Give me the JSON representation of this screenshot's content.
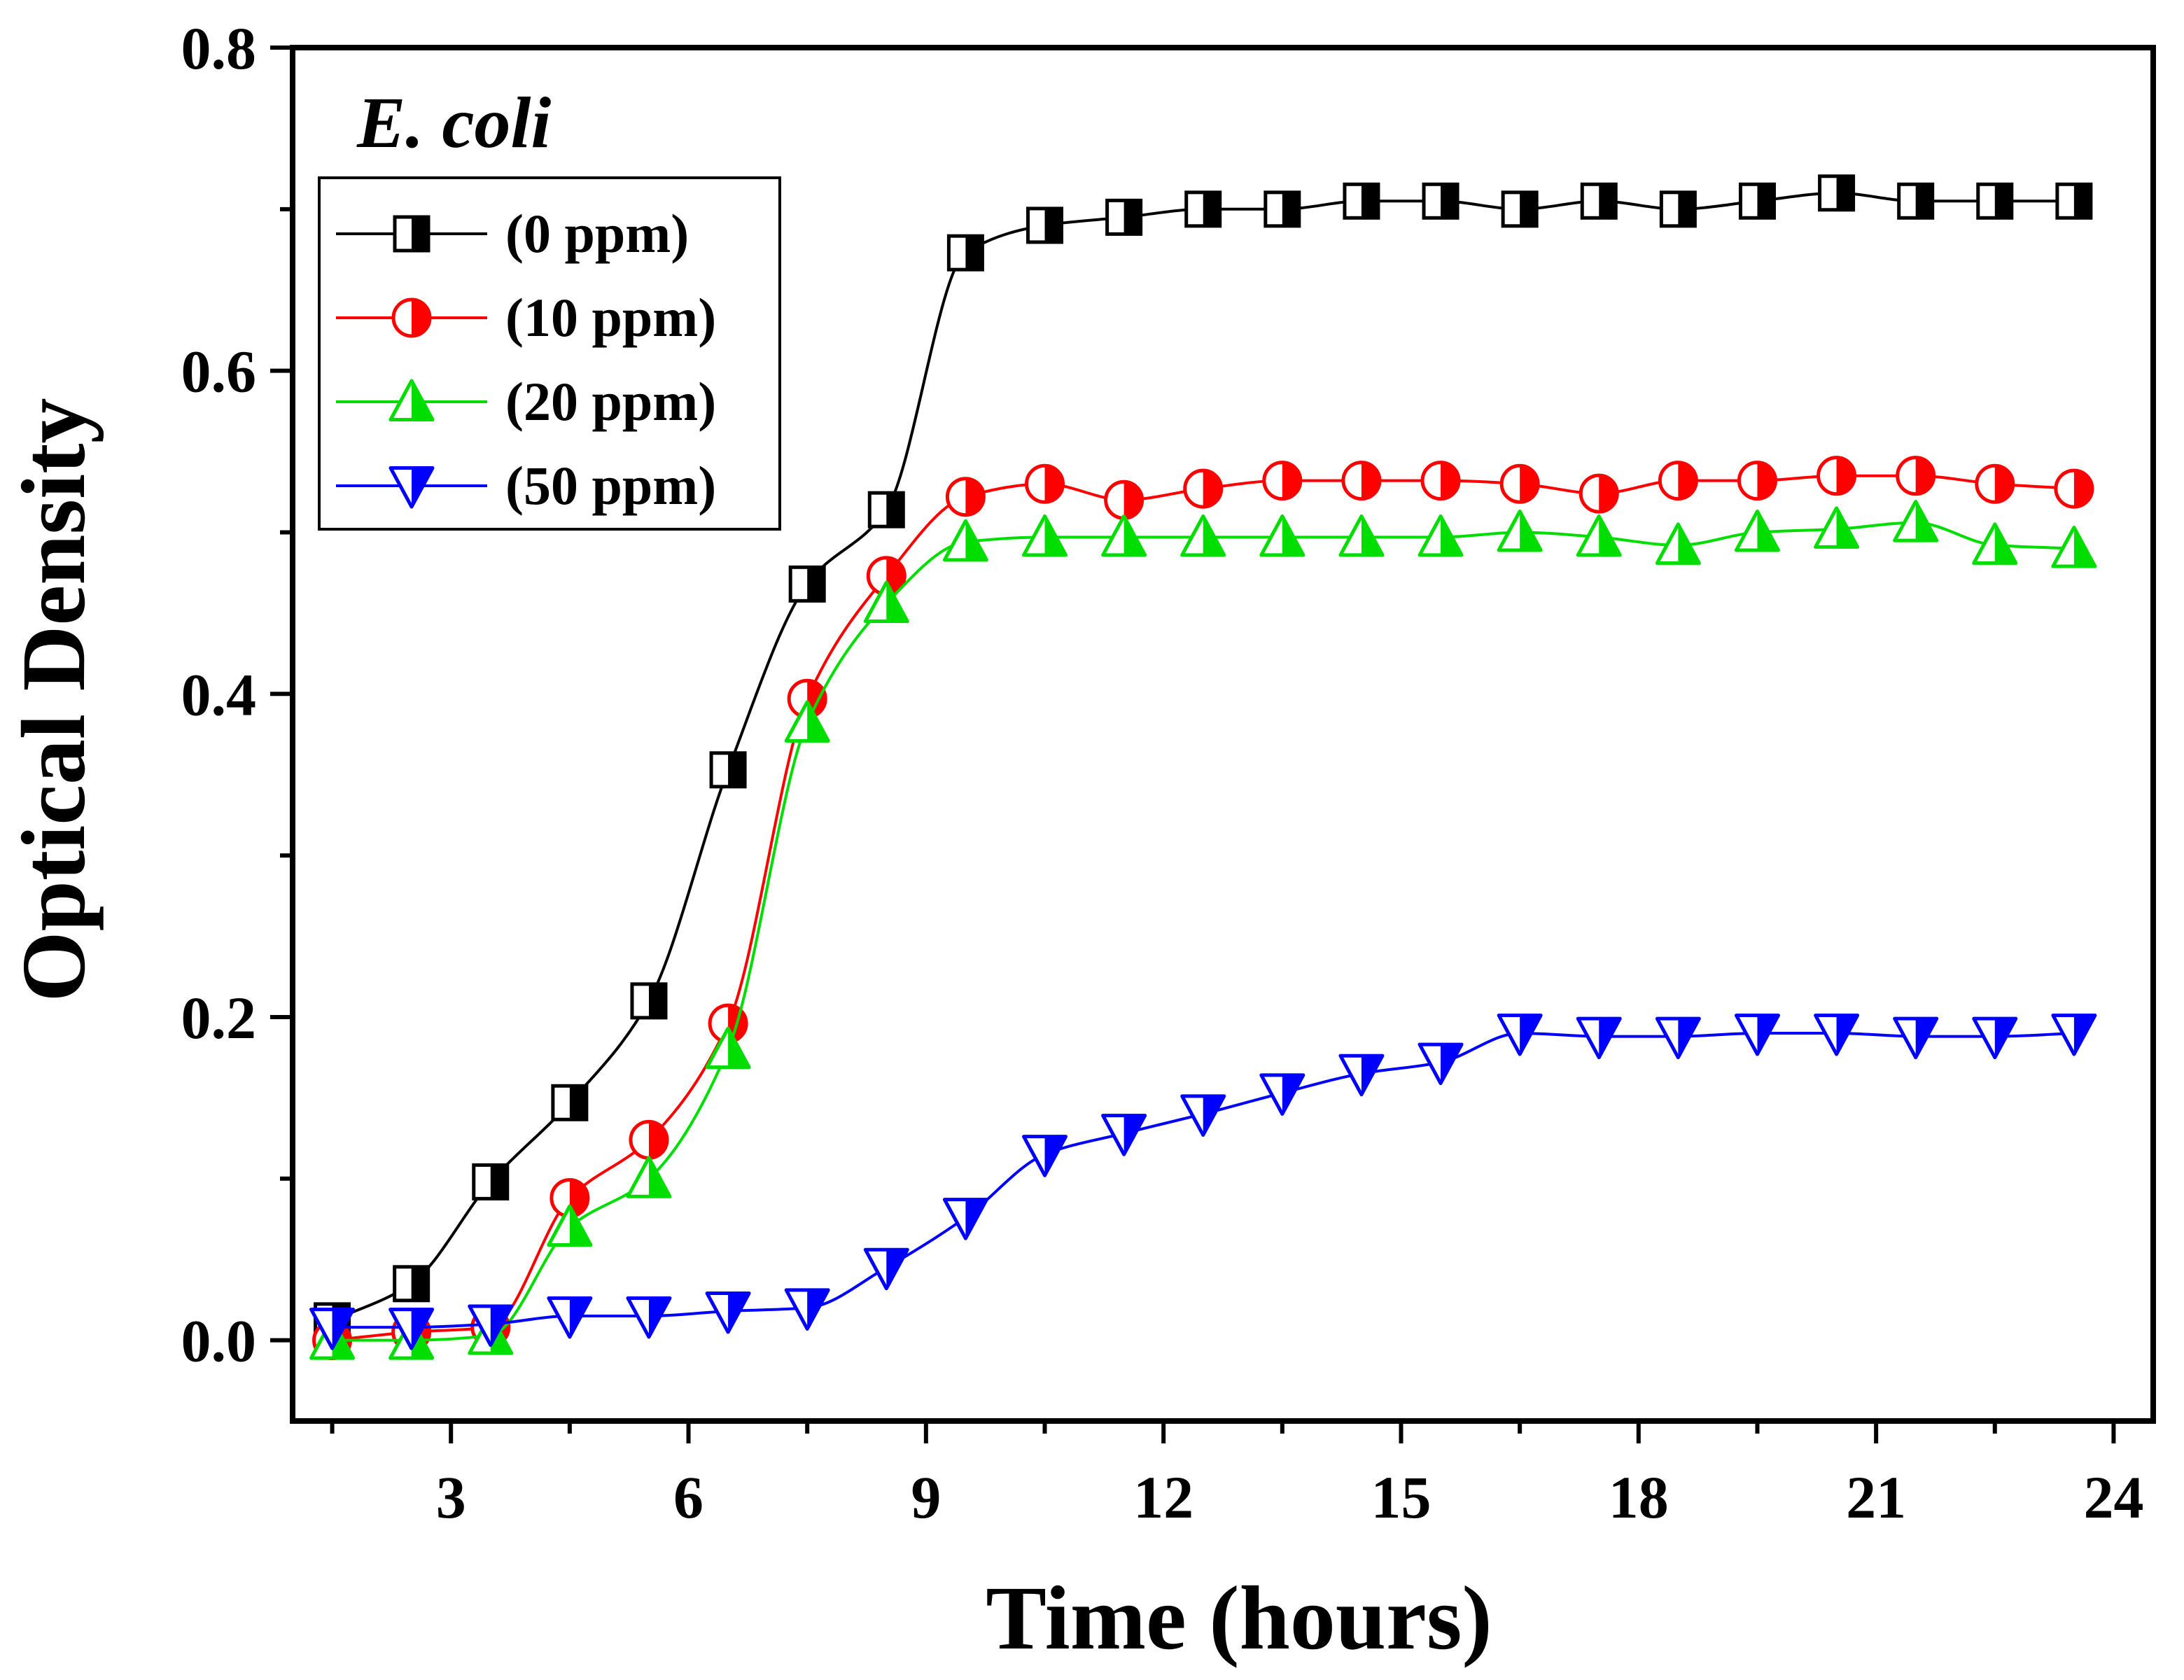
{
  "chart_data": {
    "type": "line",
    "title": "",
    "annotation": "E. coli",
    "xlabel": "Time (hours)",
    "ylabel": "Optical Density",
    "xlim": [
      1,
      24.5
    ],
    "ylim": [
      -0.05,
      0.8
    ],
    "xticks": [
      3,
      6,
      9,
      12,
      15,
      18,
      21,
      24
    ],
    "xtick_labels": [
      "3",
      "6",
      "9",
      "12",
      "15",
      "18",
      "21",
      "24"
    ],
    "yticks": [
      0.0,
      0.2,
      0.4,
      0.6,
      0.8
    ],
    "ytick_labels": [
      "0.0",
      "0.2",
      "0.4",
      "0.6",
      "0.8"
    ],
    "grid": false,
    "legend_position": "top-left",
    "series": [
      {
        "name": "(0 ppm)",
        "color": "#000000",
        "marker": "square-half",
        "x": [
          1.5,
          2.5,
          3.5,
          4.5,
          5.5,
          6.5,
          7.5,
          8.5,
          9.5,
          10.5,
          11.5,
          12.5,
          13.5,
          14.5,
          15.5,
          16.5,
          17.5,
          18.5,
          19.5,
          20.5,
          21.5,
          22.5,
          23.5
        ],
        "y": [
          0.012,
          0.035,
          0.098,
          0.147,
          0.21,
          0.353,
          0.468,
          0.514,
          0.673,
          0.69,
          0.695,
          0.7,
          0.7,
          0.705,
          0.705,
          0.7,
          0.705,
          0.7,
          0.705,
          0.71,
          0.705,
          0.705,
          0.705
        ]
      },
      {
        "name": "(10 ppm)",
        "color": "#ff0000",
        "marker": "circle-half",
        "x": [
          1.5,
          2.5,
          3.5,
          4.5,
          5.5,
          6.5,
          7.5,
          8.5,
          9.5,
          10.5,
          11.5,
          12.5,
          13.5,
          14.5,
          15.5,
          16.5,
          17.5,
          18.5,
          19.5,
          20.5,
          21.5,
          22.5,
          23.5
        ],
        "y": [
          0.0,
          0.005,
          0.008,
          0.088,
          0.124,
          0.196,
          0.397,
          0.473,
          0.522,
          0.53,
          0.52,
          0.527,
          0.532,
          0.532,
          0.532,
          0.53,
          0.524,
          0.532,
          0.532,
          0.535,
          0.535,
          0.53,
          0.527
        ]
      },
      {
        "name": "(20 ppm)",
        "color": "#00dd00",
        "marker": "triangle-up",
        "x": [
          1.5,
          2.5,
          3.5,
          4.5,
          5.5,
          6.5,
          7.5,
          8.5,
          9.5,
          10.5,
          11.5,
          12.5,
          13.5,
          14.5,
          15.5,
          16.5,
          17.5,
          18.5,
          19.5,
          20.5,
          21.5,
          22.5,
          23.5
        ],
        "y": [
          0.0,
          0.0,
          0.003,
          0.07,
          0.1,
          0.18,
          0.382,
          0.456,
          0.494,
          0.497,
          0.497,
          0.497,
          0.497,
          0.497,
          0.497,
          0.5,
          0.497,
          0.492,
          0.5,
          0.502,
          0.506,
          0.492,
          0.49
        ]
      },
      {
        "name": "(50 ppm)",
        "color": "#0000ff",
        "marker": "triangle-down",
        "x": [
          1.5,
          2.5,
          3.5,
          4.5,
          5.5,
          6.5,
          7.5,
          8.5,
          9.5,
          10.5,
          11.5,
          12.5,
          13.5,
          14.5,
          15.5,
          16.5,
          17.5,
          18.5,
          19.5,
          20.5,
          21.5,
          22.5,
          23.5
        ],
        "y": [
          0.008,
          0.008,
          0.01,
          0.015,
          0.015,
          0.018,
          0.02,
          0.045,
          0.076,
          0.115,
          0.128,
          0.14,
          0.153,
          0.165,
          0.172,
          0.19,
          0.188,
          0.188,
          0.19,
          0.19,
          0.188,
          0.188,
          0.19
        ]
      }
    ]
  }
}
